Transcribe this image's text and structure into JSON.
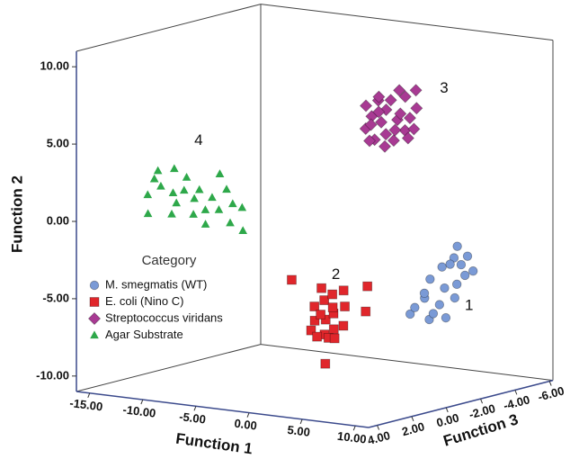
{
  "chart_data": {
    "type": "scatter3d",
    "xlabel": "Function 1",
    "ylabel": "Function 2",
    "zlabel": "Function 3",
    "xlim": [
      -16.25,
      11.25
    ],
    "ylim": [
      -11,
      11
    ],
    "zlim": [
      -6.2,
      4.5
    ],
    "xticks": [
      {
        "value": -15,
        "label": "-15.00"
      },
      {
        "value": -10,
        "label": "-10.00"
      },
      {
        "value": -5,
        "label": "-5.00"
      },
      {
        "value": 0,
        "label": "0.00"
      },
      {
        "value": 5,
        "label": "5.00"
      },
      {
        "value": 10,
        "label": "10.00"
      }
    ],
    "yticks": [
      {
        "value": -10,
        "label": "-10.00"
      },
      {
        "value": -5,
        "label": "-5.00"
      },
      {
        "value": 0,
        "label": "0.00"
      },
      {
        "value": 5,
        "label": "5.00"
      },
      {
        "value": 10,
        "label": "10.00"
      }
    ],
    "zticks": [
      {
        "value": 4,
        "label": "4.00"
      },
      {
        "value": 2,
        "label": "2.00"
      },
      {
        "value": 0,
        "label": "0.00"
      },
      {
        "value": -2,
        "label": "-2.00"
      },
      {
        "value": -4,
        "label": "-4.00"
      },
      {
        "value": -6,
        "label": "-6.00"
      }
    ],
    "legend": "lower left",
    "legend_title": "Category",
    "annotations": [
      "1",
      "2",
      "3",
      "4"
    ],
    "series": [
      {
        "name": "M. smegmatis (WT)",
        "color": "#7a9ad6",
        "marker": "circle",
        "x": [
          3.0,
          3.6,
          4.2,
          4.8,
          5.2,
          5.6,
          6.0,
          6.4,
          6.8,
          7.2,
          7.6,
          8.0,
          8.4,
          5.5,
          6.6,
          7.4,
          4.5,
          6.2,
          7.8,
          8.6
        ],
        "y": [
          -6.5,
          -6.0,
          -5.4,
          -6.7,
          -4.0,
          -5.7,
          -3.2,
          -4.5,
          -2.6,
          -5.1,
          -1.7,
          -3.6,
          -2.3,
          -6.2,
          -3.0,
          -4.2,
          -5.0,
          -6.5,
          -2.9,
          -3.3
        ],
        "z": [
          -3.0,
          -2.9,
          -3.1,
          -3.0,
          -2.8,
          -3.1,
          -3.0,
          -2.9,
          -3.2,
          -3.0,
          -2.9,
          -3.1,
          -3.0,
          -2.8,
          -3.1,
          -3.0,
          -2.9,
          -3.1,
          -3.0,
          -3.2
        ]
      },
      {
        "name": "E. coli (Nino C)",
        "color": "#e0262b",
        "marker": "square",
        "x": [
          -1.5,
          0.0,
          0.5,
          0.8,
          1.1,
          1.4,
          1.7,
          2.0,
          2.3,
          2.6,
          2.9,
          3.2,
          3.5,
          0.9,
          1.8,
          2.7,
          0.4,
          2.2,
          1.3,
          5.3,
          5.3,
          1.5
        ],
        "y": [
          -3.5,
          -6.7,
          -6.0,
          -5.0,
          -6.9,
          -4.6,
          -5.8,
          -4.2,
          -6.4,
          -5.3,
          -3.9,
          -6.1,
          -4.8,
          -5.6,
          -7.0,
          -6.9,
          -7.1,
          -5.0,
          -3.8,
          -3.4,
          -5.0,
          -8.7
        ],
        "z": [
          1.1,
          0.9,
          1.0,
          1.2,
          0.8,
          1.0,
          1.1,
          0.9,
          1.0,
          1.2,
          0.8,
          1.0,
          1.1,
          0.9,
          1.0,
          1.2,
          0.8,
          1.0,
          1.1,
          0.9,
          1.0,
          1.0
        ]
      },
      {
        "name": "Streptococcus viridans",
        "color": "#a83a93",
        "marker": "diamond",
        "x": [
          0.3,
          0.6,
          1.0,
          1.3,
          1.6,
          1.9,
          2.2,
          2.5,
          2.8,
          3.1,
          3.4,
          3.7,
          4.0,
          4.3,
          4.6,
          4.9,
          5.3,
          0.8,
          1.5,
          2.4,
          3.2,
          4.1,
          2.0,
          3.6,
          5.0,
          1.1
        ],
        "y": [
          7.0,
          5.6,
          6.4,
          7.4,
          5.0,
          6.1,
          6.9,
          5.4,
          7.6,
          6.3,
          5.1,
          6.8,
          7.9,
          5.8,
          6.6,
          7.2,
          6.0,
          4.8,
          6.7,
          4.6,
          5.7,
          5.2,
          7.8,
          8.3,
          8.4,
          5.9
        ],
        "z": [
          -2.1,
          -1.9,
          -2.0,
          -2.2,
          -1.8,
          -2.0,
          -2.1,
          -1.9,
          -2.0,
          -2.2,
          -1.8,
          -2.0,
          -2.1,
          -1.9,
          -2.0,
          -2.2,
          -1.8,
          -2.0,
          -2.1,
          -1.9,
          -2.0,
          -2.2,
          -1.8,
          -2.0,
          -2.1,
          -1.9
        ]
      },
      {
        "name": "Agar Substrate",
        "color": "#2ea84a",
        "marker": "triangle",
        "x": [
          -11.0,
          -10.7,
          -10.2,
          -9.6,
          -9.1,
          -8.9,
          -8.3,
          -7.9,
          -7.5,
          -7.1,
          -6.7,
          -6.3,
          -5.9,
          -5.4,
          -5.1,
          -4.7,
          -4.3,
          -3.9,
          -3.4,
          -3.0,
          -2.6,
          -2.2,
          -11.3,
          -8.5
        ],
        "y": [
          1.9,
          2.9,
          3.5,
          2.6,
          2.1,
          0.8,
          1.6,
          2.4,
          3.3,
          1.9,
          1.0,
          2.6,
          1.3,
          0.5,
          2.2,
          3.7,
          1.5,
          2.8,
          0.7,
          2.0,
          1.7,
          0.3,
          0.6,
          3.8
        ],
        "z": [
          3.6,
          3.4,
          3.5,
          3.7,
          3.3,
          3.5,
          3.6,
          3.4,
          3.5,
          3.3,
          3.6,
          3.5,
          3.4,
          3.7,
          3.5,
          3.3,
          3.6,
          3.4,
          3.5,
          3.6,
          3.3,
          3.5,
          3.4,
          3.6
        ]
      }
    ]
  }
}
